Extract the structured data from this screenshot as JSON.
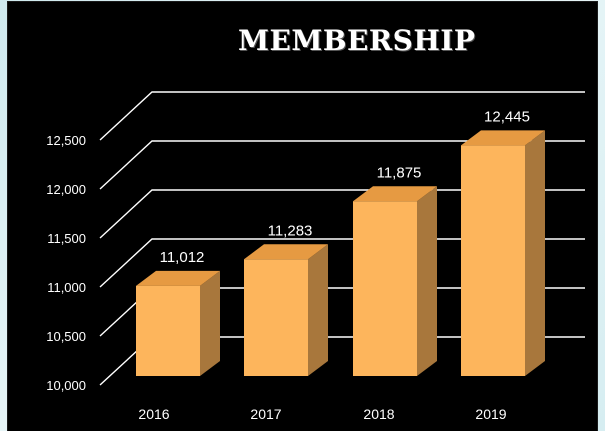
{
  "chart_data": {
    "type": "bar",
    "title": "MEMBERSHIP",
    "categories": [
      "2016",
      "2017",
      "2018",
      "2019"
    ],
    "values": [
      11012,
      11283,
      11875,
      12445
    ],
    "data_labels": [
      "11,012",
      "11,283",
      "11,875",
      "12,445"
    ],
    "y_ticks": [
      10000,
      10500,
      11000,
      11500,
      12000,
      12500
    ],
    "y_tick_labels": [
      "10,000",
      "10,500",
      "11,000",
      "11,500",
      "12,000",
      "12,500"
    ],
    "ylim": [
      10000,
      12500
    ],
    "xlabel": "",
    "ylabel": "",
    "grid": true,
    "style": "3d-column",
    "colors": {
      "bar_front": "#FDB55C",
      "bar_side": "#A8773C",
      "bar_top": "#E69A42",
      "gridline": "#FFFFFF",
      "text": "#FFFFFF",
      "background": "#000000"
    }
  }
}
